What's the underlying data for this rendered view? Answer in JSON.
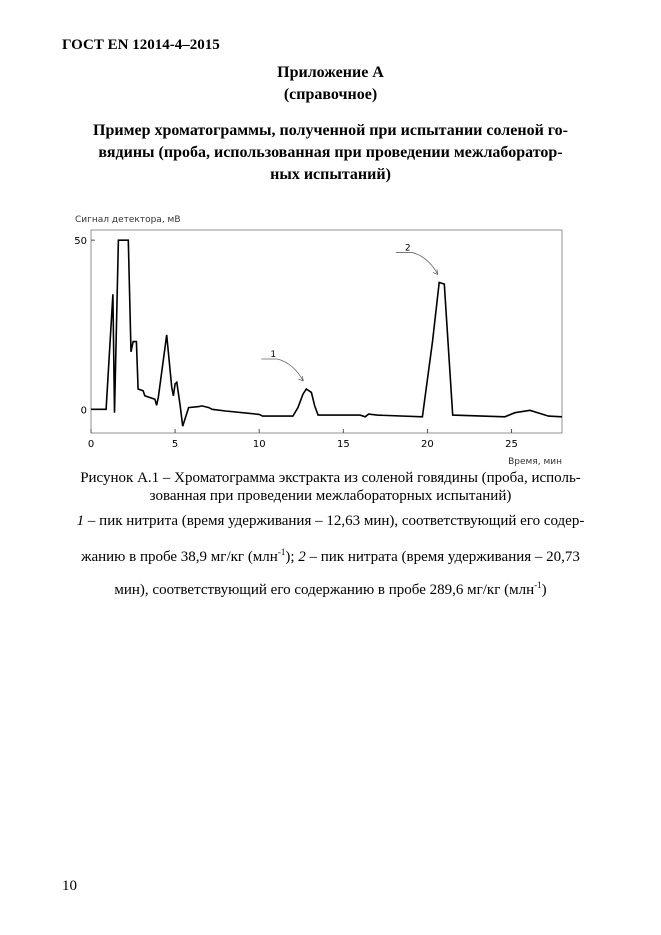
{
  "header": {
    "standard": "ГОСТ EN 12014-4–2015"
  },
  "annex": {
    "title": "Приложение А",
    "subtitle": "(справочное)"
  },
  "heading": {
    "line1": "Пример хроматограммы, полученной при испытании соленой го-",
    "line2": "вядины (проба, использованная при проведении межлаборатор-",
    "line3": "ных испытаний)"
  },
  "chart_data": {
    "type": "line",
    "ylabel": "Сигнал детектора, мВ",
    "xlabel": "Время, мин",
    "xlim": [
      0,
      28
    ],
    "ylim": [
      -7,
      53
    ],
    "xticks": [
      0,
      5,
      10,
      15,
      20,
      25
    ],
    "yticks": [
      0,
      50
    ],
    "grid": false,
    "annotations": [
      {
        "label": "1",
        "x": 12.8,
        "y": 6
      },
      {
        "label": "2",
        "x": 20.8,
        "y": 37.5
      }
    ],
    "points": [
      [
        0,
        0
      ],
      [
        0.9,
        0
      ],
      [
        1.3,
        34
      ],
      [
        1.4,
        -1
      ],
      [
        1.63,
        50
      ],
      [
        2.22,
        50
      ],
      [
        2.38,
        17
      ],
      [
        2.5,
        20
      ],
      [
        2.7,
        20
      ],
      [
        2.8,
        6
      ],
      [
        3.1,
        5.5
      ],
      [
        3.2,
        4
      ],
      [
        3.8,
        3
      ],
      [
        3.9,
        1.2
      ],
      [
        4.0,
        3.5
      ],
      [
        4.5,
        22
      ],
      [
        4.8,
        6.6
      ],
      [
        4.9,
        4
      ],
      [
        5.0,
        7.5
      ],
      [
        5.1,
        8
      ],
      [
        5.3,
        1
      ],
      [
        5.45,
        -5
      ],
      [
        5.8,
        0.5
      ],
      [
        6.4,
        0.8
      ],
      [
        6.6,
        1
      ],
      [
        7.0,
        0.5
      ],
      [
        7.2,
        0
      ],
      [
        8.0,
        -0.5
      ],
      [
        10.0,
        -1.5
      ],
      [
        10.2,
        -2
      ],
      [
        12.0,
        -2
      ],
      [
        12.3,
        0.5
      ],
      [
        12.6,
        4.5
      ],
      [
        12.8,
        6
      ],
      [
        13.1,
        5
      ],
      [
        13.3,
        1
      ],
      [
        13.5,
        -1.7
      ],
      [
        16.0,
        -1.7
      ],
      [
        16.3,
        -2.2
      ],
      [
        16.5,
        -1.4
      ],
      [
        17.0,
        -1.7
      ],
      [
        19.7,
        -2.2
      ],
      [
        20.3,
        20
      ],
      [
        20.7,
        37.5
      ],
      [
        21.0,
        37
      ],
      [
        21.5,
        -1.7
      ],
      [
        24.6,
        -2.2
      ],
      [
        25.2,
        -1
      ],
      [
        26.1,
        -0.3
      ],
      [
        27.2,
        -2
      ],
      [
        28.0,
        -2.2
      ]
    ]
  },
  "caption": {
    "line1": "Рисунок А.1 – Хроматограмма экстракта из соленой говядины (проба, исполь-",
    "line2": "зованная при проведении межлабораторных испытаний)"
  },
  "legend": {
    "num1": "1",
    "text1a": " – пик нитрита (время удерживания – 12,63 мин), соответствующий его содер-",
    "text1b": "жанию в пробе 38,9 мг/кг (млн",
    "sup": "-1",
    "text1c": "); ",
    "num2": "2",
    "text2a": " – пик нитрата (время удерживания – 20,73",
    "text2b": "мин), соответствующий его содержанию в пробе 289,6 мг/кг (млн",
    "text2c": ")"
  },
  "page_number": "10"
}
